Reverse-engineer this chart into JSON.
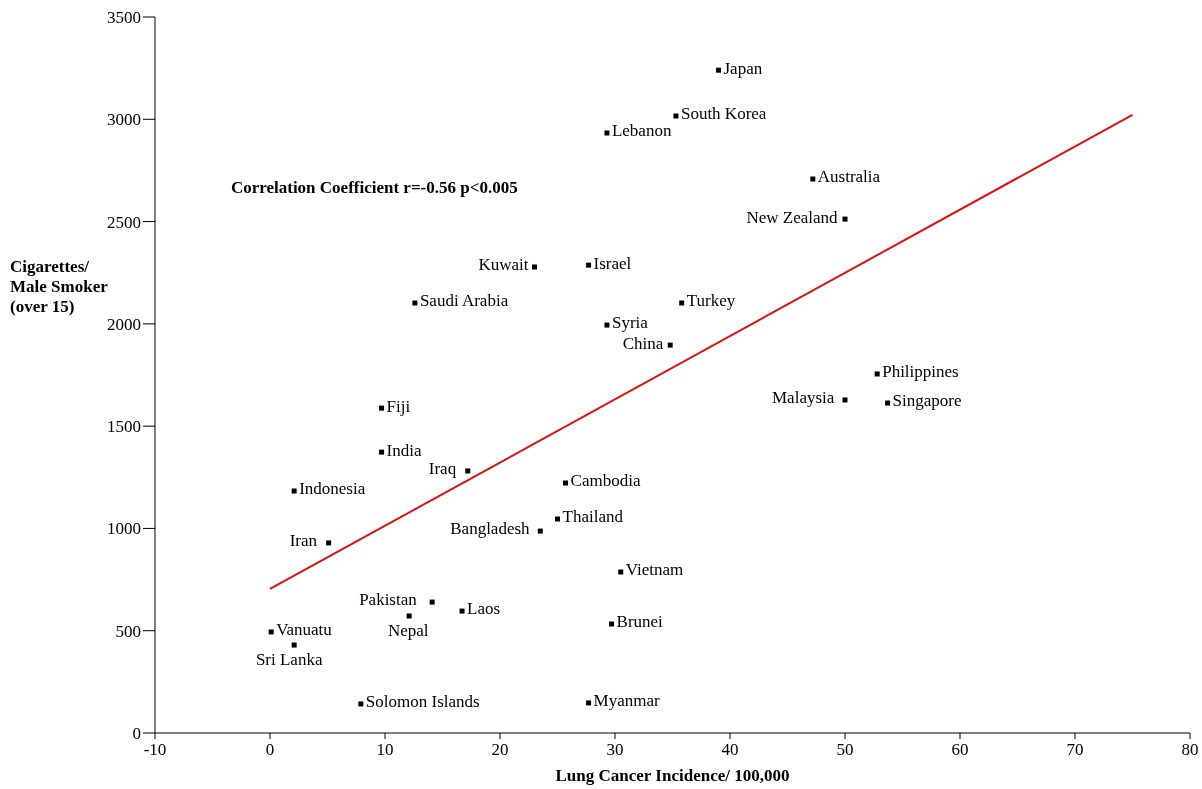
{
  "chart_data": {
    "type": "scatter",
    "xlabel": "Lung Cancer Incidence/ 100,000",
    "ylabel": "Cigarettes/ Male Smoker (over 15)",
    "xlim": [
      -10,
      80
    ],
    "xticks": [
      -10,
      0,
      10,
      20,
      30,
      40,
      50,
      60,
      70,
      80
    ],
    "ylim": [
      0,
      3500
    ],
    "yticks": [
      0,
      500,
      1000,
      1500,
      2000,
      2500,
      3000,
      3500
    ],
    "grid": false,
    "marker": "square",
    "series": [
      {
        "color": "#000000",
        "x": [
          39,
          35.3,
          29.3,
          47.2,
          50,
          23,
          27.7,
          12.6,
          35.8,
          29.3,
          34.8,
          52.8,
          50,
          53.7,
          9.7,
          9.7,
          17.2,
          25.7,
          2.1,
          25,
          23.5,
          5.1,
          30.5,
          14.1,
          16.7,
          12.1,
          29.7,
          0.1,
          2.1,
          7.9,
          27.7
        ],
        "values": [
          3240,
          3016,
          2933,
          2708,
          2512,
          2278,
          2287,
          2102,
          2102,
          1994,
          1896,
          1755,
          1628,
          1613,
          1588,
          1373,
          1281,
          1222,
          1183,
          1046,
          987,
          929,
          787,
          640,
          596,
          572,
          533,
          494,
          430,
          142,
          147
        ]
      },
      {
        "type": "line",
        "color": "#dd1111",
        "line_style": "solid",
        "marker": "none",
        "x": [
          0,
          75
        ],
        "values": [
          704,
          3022
        ]
      }
    ],
    "annotations": [
      "Correlation Coefficient r=-0.56 p<0.005",
      {
        "text": "Japan",
        "x": 39,
        "y": 3240
      },
      {
        "text": "South Korea",
        "x": 35.3,
        "y": 3016
      },
      {
        "text": "Lebanon",
        "x": 29.3,
        "y": 2933
      },
      {
        "text": "Australia",
        "x": 47.2,
        "y": 2708
      },
      {
        "text": "New Zealand",
        "x": 50,
        "y": 2512
      },
      {
        "text": "Kuwait",
        "x": 23,
        "y": 2278
      },
      {
        "text": "Israel",
        "x": 27.7,
        "y": 2287
      },
      {
        "text": "Saudi Arabia",
        "x": 12.6,
        "y": 2102
      },
      {
        "text": "Turkey",
        "x": 35.8,
        "y": 2102
      },
      {
        "text": "Syria",
        "x": 29.3,
        "y": 1994
      },
      {
        "text": "China",
        "x": 34.8,
        "y": 1896
      },
      {
        "text": "Philippines",
        "x": 52.8,
        "y": 1755
      },
      {
        "text": "Malaysia",
        "x": 50,
        "y": 1628
      },
      {
        "text": "Singapore",
        "x": 53.7,
        "y": 1613
      },
      {
        "text": "Fiji",
        "x": 9.7,
        "y": 1588
      },
      {
        "text": "India",
        "x": 9.7,
        "y": 1373
      },
      {
        "text": "Iraq",
        "x": 17.2,
        "y": 1281
      },
      {
        "text": "Cambodia",
        "x": 25.7,
        "y": 1222
      },
      {
        "text": "Indonesia",
        "x": 2.1,
        "y": 1183
      },
      {
        "text": "Thailand",
        "x": 25,
        "y": 1046
      },
      {
        "text": "Bangladesh",
        "x": 23.5,
        "y": 987
      },
      {
        "text": "Iran",
        "x": 5.1,
        "y": 929
      },
      {
        "text": "Vietnam",
        "x": 30.5,
        "y": 787
      },
      {
        "text": "Pakistan",
        "x": 14.1,
        "y": 640
      },
      {
        "text": "Laos",
        "x": 16.7,
        "y": 596
      },
      {
        "text": "Nepal",
        "x": 12.1,
        "y": 572
      },
      {
        "text": "Brunei",
        "x": 29.7,
        "y": 533
      },
      {
        "text": "Vanuatu",
        "x": 0.1,
        "y": 494
      },
      {
        "text": "Sri Lanka",
        "x": 2.1,
        "y": 430
      },
      {
        "text": "Solomon Islands",
        "x": 7.9,
        "y": 142
      },
      {
        "text": "Myanmar",
        "x": 27.7,
        "y": 147
      }
    ]
  }
}
